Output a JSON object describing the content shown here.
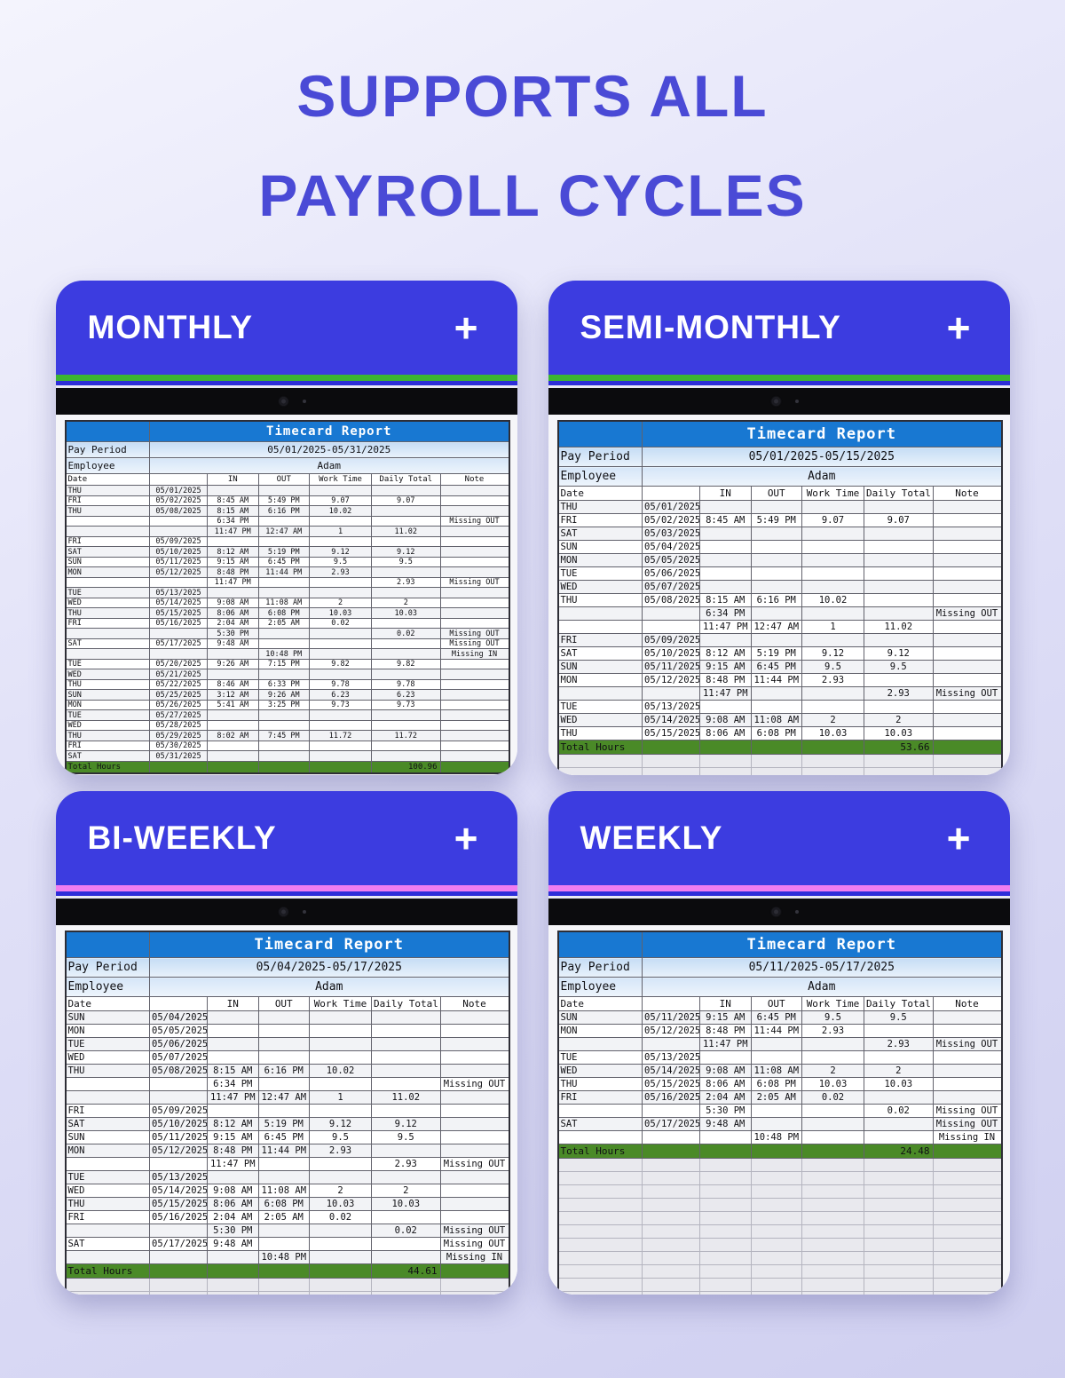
{
  "page_title": {
    "line1": "SUPPORTS ALL",
    "line2": "PAYROLL CYCLES"
  },
  "report": {
    "title": "Timecard Report",
    "pay_period_label": "Pay Period",
    "employee_label": "Employee",
    "employee": "Adam",
    "columns": [
      "Date",
      "",
      "IN",
      "OUT",
      "Work Time",
      "Daily Total",
      "Note"
    ],
    "total_label": "Total Hours",
    "add_button": "+"
  },
  "colors": {
    "title_blue": "#4a4ad6",
    "header_blue": "#3c3ce0",
    "table_header_blue": "#1878d2",
    "stripe_green": "#3cb531",
    "stripe_pink": "#f07df0",
    "total_green": "#4a8a27"
  },
  "panels": [
    {
      "id": "monthly",
      "label": "MONTHLY",
      "stripe": "green",
      "dense": true,
      "pay_period": "05/01/2025-05/31/2025",
      "total": "100.96",
      "empty_rows": 0,
      "rows": [
        [
          "THU",
          "05/01/2025",
          "",
          "",
          "",
          "",
          ""
        ],
        [
          "FRI",
          "05/02/2025",
          "8:45 AM",
          "5:49 PM",
          "9.07",
          "9.07",
          ""
        ],
        [
          "THU",
          "05/08/2025",
          "8:15 AM",
          "6:16 PM",
          "10.02",
          "",
          ""
        ],
        [
          "",
          "",
          "6:34 PM",
          "",
          "",
          "",
          "Missing OUT"
        ],
        [
          "",
          "",
          "11:47 PM",
          "12:47 AM",
          "1",
          "11.02",
          ""
        ],
        [
          "FRI",
          "05/09/2025",
          "",
          "",
          "",
          "",
          ""
        ],
        [
          "SAT",
          "05/10/2025",
          "8:12 AM",
          "5:19 PM",
          "9.12",
          "9.12",
          ""
        ],
        [
          "SUN",
          "05/11/2025",
          "9:15 AM",
          "6:45 PM",
          "9.5",
          "9.5",
          ""
        ],
        [
          "MON",
          "05/12/2025",
          "8:48 PM",
          "11:44 PM",
          "2.93",
          "",
          ""
        ],
        [
          "",
          "",
          "11:47 PM",
          "",
          "",
          "2.93",
          "Missing OUT"
        ],
        [
          "TUE",
          "05/13/2025",
          "",
          "",
          "",
          "",
          ""
        ],
        [
          "WED",
          "05/14/2025",
          "9:08 AM",
          "11:08 AM",
          "2",
          "2",
          ""
        ],
        [
          "THU",
          "05/15/2025",
          "8:06 AM",
          "6:08 PM",
          "10.03",
          "10.03",
          ""
        ],
        [
          "FRI",
          "05/16/2025",
          "2:04 AM",
          "2:05 AM",
          "0.02",
          "",
          ""
        ],
        [
          "",
          "",
          "5:30 PM",
          "",
          "",
          "0.02",
          "Missing OUT"
        ],
        [
          "SAT",
          "05/17/2025",
          "9:48 AM",
          "",
          "",
          "",
          "Missing OUT"
        ],
        [
          "",
          "",
          "",
          "10:48 PM",
          "",
          "",
          "Missing IN"
        ],
        [
          "TUE",
          "05/20/2025",
          "9:26 AM",
          "7:15 PM",
          "9.82",
          "9.82",
          ""
        ],
        [
          "WED",
          "05/21/2025",
          "",
          "",
          "",
          "",
          ""
        ],
        [
          "THU",
          "05/22/2025",
          "8:46 AM",
          "6:33 PM",
          "9.78",
          "9.78",
          ""
        ],
        [
          "SUN",
          "05/25/2025",
          "3:12 AM",
          "9:26 AM",
          "6.23",
          "6.23",
          ""
        ],
        [
          "MON",
          "05/26/2025",
          "5:41 AM",
          "3:25 PM",
          "9.73",
          "9.73",
          ""
        ],
        [
          "TUE",
          "05/27/2025",
          "",
          "",
          "",
          "",
          ""
        ],
        [
          "WED",
          "05/28/2025",
          "",
          "",
          "",
          "",
          ""
        ],
        [
          "THU",
          "05/29/2025",
          "8:02 AM",
          "7:45 PM",
          "11.72",
          "11.72",
          ""
        ],
        [
          "FRI",
          "05/30/2025",
          "",
          "",
          "",
          "",
          ""
        ],
        [
          "SAT",
          "05/31/2025",
          "",
          "",
          "",
          "",
          ""
        ]
      ]
    },
    {
      "id": "semi-monthly",
      "label": "SEMI-MONTHLY",
      "stripe": "green",
      "dense": false,
      "pay_period": "05/01/2025-05/15/2025",
      "total": "53.66",
      "empty_rows": 2,
      "rows": [
        [
          "THU",
          "05/01/2025",
          "",
          "",
          "",
          "",
          ""
        ],
        [
          "FRI",
          "05/02/2025",
          "8:45 AM",
          "5:49 PM",
          "9.07",
          "9.07",
          ""
        ],
        [
          "SAT",
          "05/03/2025",
          "",
          "",
          "",
          "",
          ""
        ],
        [
          "SUN",
          "05/04/2025",
          "",
          "",
          "",
          "",
          ""
        ],
        [
          "MON",
          "05/05/2025",
          "",
          "",
          "",
          "",
          ""
        ],
        [
          "TUE",
          "05/06/2025",
          "",
          "",
          "",
          "",
          ""
        ],
        [
          "WED",
          "05/07/2025",
          "",
          "",
          "",
          "",
          ""
        ],
        [
          "THU",
          "05/08/2025",
          "8:15 AM",
          "6:16 PM",
          "10.02",
          "",
          ""
        ],
        [
          "",
          "",
          "6:34 PM",
          "",
          "",
          "",
          "Missing OUT"
        ],
        [
          "",
          "",
          "11:47 PM",
          "12:47 AM",
          "1",
          "11.02",
          ""
        ],
        [
          "FRI",
          "05/09/2025",
          "",
          "",
          "",
          "",
          ""
        ],
        [
          "SAT",
          "05/10/2025",
          "8:12 AM",
          "5:19 PM",
          "9.12",
          "9.12",
          ""
        ],
        [
          "SUN",
          "05/11/2025",
          "9:15 AM",
          "6:45 PM",
          "9.5",
          "9.5",
          ""
        ],
        [
          "MON",
          "05/12/2025",
          "8:48 PM",
          "11:44 PM",
          "2.93",
          "",
          ""
        ],
        [
          "",
          "",
          "11:47 PM",
          "",
          "",
          "2.93",
          "Missing OUT"
        ],
        [
          "TUE",
          "05/13/2025",
          "",
          "",
          "",
          "",
          ""
        ],
        [
          "WED",
          "05/14/2025",
          "9:08 AM",
          "11:08 AM",
          "2",
          "2",
          ""
        ],
        [
          "THU",
          "05/15/2025",
          "8:06 AM",
          "6:08 PM",
          "10.03",
          "10.03",
          ""
        ]
      ]
    },
    {
      "id": "bi-weekly",
      "label": "BI-WEEKLY",
      "stripe": "pink",
      "dense": false,
      "pay_period": "05/04/2025-05/17/2025",
      "total": "44.61",
      "empty_rows": 4,
      "rows": [
        [
          "SUN",
          "05/04/2025",
          "",
          "",
          "",
          "",
          ""
        ],
        [
          "MON",
          "05/05/2025",
          "",
          "",
          "",
          "",
          ""
        ],
        [
          "TUE",
          "05/06/2025",
          "",
          "",
          "",
          "",
          ""
        ],
        [
          "WED",
          "05/07/2025",
          "",
          "",
          "",
          "",
          ""
        ],
        [
          "THU",
          "05/08/2025",
          "8:15 AM",
          "6:16 PM",
          "10.02",
          "",
          ""
        ],
        [
          "",
          "",
          "6:34 PM",
          "",
          "",
          "",
          "Missing OUT"
        ],
        [
          "",
          "",
          "11:47 PM",
          "12:47 AM",
          "1",
          "11.02",
          ""
        ],
        [
          "FRI",
          "05/09/2025",
          "",
          "",
          "",
          "",
          ""
        ],
        [
          "SAT",
          "05/10/2025",
          "8:12 AM",
          "5:19 PM",
          "9.12",
          "9.12",
          ""
        ],
        [
          "SUN",
          "05/11/2025",
          "9:15 AM",
          "6:45 PM",
          "9.5",
          "9.5",
          ""
        ],
        [
          "MON",
          "05/12/2025",
          "8:48 PM",
          "11:44 PM",
          "2.93",
          "",
          ""
        ],
        [
          "",
          "",
          "11:47 PM",
          "",
          "",
          "2.93",
          "Missing OUT"
        ],
        [
          "TUE",
          "05/13/2025",
          "",
          "",
          "",
          "",
          ""
        ],
        [
          "WED",
          "05/14/2025",
          "9:08 AM",
          "11:08 AM",
          "2",
          "2",
          ""
        ],
        [
          "THU",
          "05/15/2025",
          "8:06 AM",
          "6:08 PM",
          "10.03",
          "10.03",
          ""
        ],
        [
          "FRI",
          "05/16/2025",
          "2:04 AM",
          "2:05 AM",
          "0.02",
          "",
          ""
        ],
        [
          "",
          "",
          "5:30 PM",
          "",
          "",
          "0.02",
          "Missing OUT"
        ],
        [
          "SAT",
          "05/17/2025",
          "9:48 AM",
          "",
          "",
          "",
          "Missing OUT"
        ],
        [
          "",
          "",
          "",
          "10:48 PM",
          "",
          "",
          "Missing IN"
        ]
      ]
    },
    {
      "id": "weekly",
      "label": "WEEKLY",
      "stripe": "pink",
      "dense": false,
      "pay_period": "05/11/2025-05/17/2025",
      "total": "24.48",
      "empty_rows": 13,
      "rows": [
        [
          "SUN",
          "05/11/2025",
          "9:15 AM",
          "6:45 PM",
          "9.5",
          "9.5",
          ""
        ],
        [
          "MON",
          "05/12/2025",
          "8:48 PM",
          "11:44 PM",
          "2.93",
          "",
          ""
        ],
        [
          "",
          "",
          "11:47 PM",
          "",
          "",
          "2.93",
          "Missing OUT"
        ],
        [
          "TUE",
          "05/13/2025",
          "",
          "",
          "",
          "",
          ""
        ],
        [
          "WED",
          "05/14/2025",
          "9:08 AM",
          "11:08 AM",
          "2",
          "2",
          ""
        ],
        [
          "THU",
          "05/15/2025",
          "8:06 AM",
          "6:08 PM",
          "10.03",
          "10.03",
          ""
        ],
        [
          "FRI",
          "05/16/2025",
          "2:04 AM",
          "2:05 AM",
          "0.02",
          "",
          ""
        ],
        [
          "",
          "",
          "5:30 PM",
          "",
          "",
          "0.02",
          "Missing OUT"
        ],
        [
          "SAT",
          "05/17/2025",
          "9:48 AM",
          "",
          "",
          "",
          "Missing OUT"
        ],
        [
          "",
          "",
          "",
          "10:48 PM",
          "",
          "",
          "Missing IN"
        ]
      ]
    }
  ]
}
